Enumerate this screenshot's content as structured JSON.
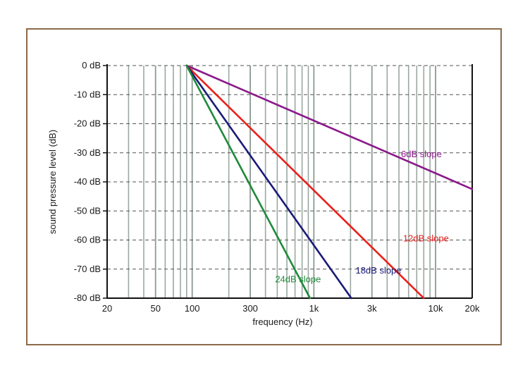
{
  "chart_data": {
    "type": "line",
    "title": "",
    "xlabel": "frequency (Hz)",
    "ylabel": "sound pressure level (dB)",
    "x_scale": "log",
    "xlim": [
      20,
      20000
    ],
    "ylim": [
      -80,
      0
    ],
    "x_ticks": [
      {
        "value": 20,
        "label": "20"
      },
      {
        "value": 50,
        "label": "50"
      },
      {
        "value": 100,
        "label": "100"
      },
      {
        "value": 300,
        "label": "300"
      },
      {
        "value": 1000,
        "label": "1k"
      },
      {
        "value": 3000,
        "label": "3k"
      },
      {
        "value": 10000,
        "label": "10k"
      },
      {
        "value": 20000,
        "label": "20k"
      }
    ],
    "y_ticks": [
      {
        "value": 0,
        "label": "0 dB"
      },
      {
        "value": -10,
        "label": "-10 dB"
      },
      {
        "value": -20,
        "label": "-20 dB"
      },
      {
        "value": -30,
        "label": "-30 dB"
      },
      {
        "value": -40,
        "label": "-40 dB"
      },
      {
        "value": -50,
        "label": "-50 dB"
      },
      {
        "value": -60,
        "label": "-60 dB"
      },
      {
        "value": -70,
        "label": "-70 dB"
      },
      {
        "value": -80,
        "label": "-80 dB"
      }
    ],
    "minor_x_gridlines": [
      30,
      40,
      60,
      70,
      80,
      90,
      200,
      400,
      500,
      600,
      700,
      800,
      900,
      2000,
      4000,
      5000,
      6000,
      7000,
      8000,
      9000
    ],
    "grid": true,
    "series": [
      {
        "name": "6dB slope",
        "color": "#8b1a8b",
        "x": [
          90,
          20000
        ],
        "y": [
          0,
          -42.5
        ]
      },
      {
        "name": "12dB slope",
        "color": "#e8201a",
        "x": [
          90,
          8000
        ],
        "y": [
          0,
          -80
        ]
      },
      {
        "name": "18dB slope",
        "color": "#1a1a7a",
        "x": [
          90,
          2030
        ],
        "y": [
          0,
          -80
        ]
      },
      {
        "name": "24dB slope",
        "color": "#1f8a3a",
        "x": [
          90,
          930
        ],
        "y": [
          0,
          -80
        ]
      }
    ],
    "annotations": [
      {
        "series": 0,
        "text": "6dB slope",
        "x": 5200,
        "y": -31.5
      },
      {
        "series": 1,
        "text": "12dB slope",
        "x": 5400,
        "y": -60.5
      },
      {
        "series": 2,
        "text": "18dB slope",
        "x": 2200,
        "y": -71.5
      },
      {
        "series": 3,
        "text": "24dB slope",
        "x": 480,
        "y": -74.5
      }
    ]
  }
}
